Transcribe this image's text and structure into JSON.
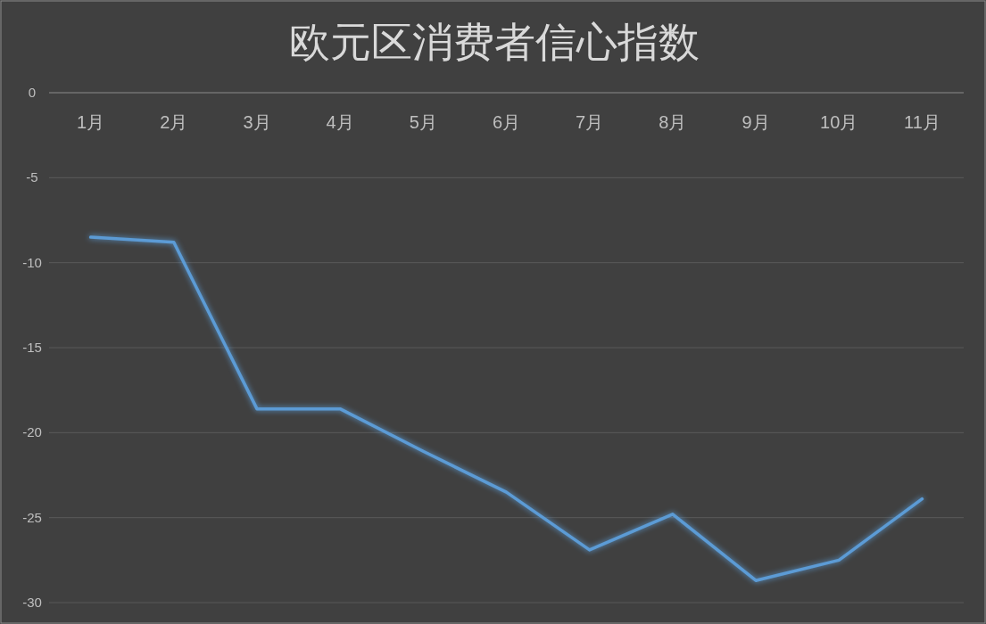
{
  "chart_data": {
    "type": "line",
    "title": "欧元区消费者信心指数",
    "categories": [
      "1月",
      "2月",
      "3月",
      "4月",
      "5月",
      "6月",
      "7月",
      "8月",
      "9月",
      "10月",
      "11月"
    ],
    "series": [
      {
        "color": "#5b9bd5",
        "values": [
          -8.5,
          -8.8,
          -18.6,
          -18.6,
          -21.1,
          -23.5,
          -26.9,
          -24.8,
          -28.7,
          -27.5,
          -23.9
        ]
      }
    ],
    "ylim": [
      -30,
      0
    ],
    "yticks": [
      0,
      -5,
      -10,
      -15,
      -20,
      -25,
      -30
    ],
    "grid": "y"
  }
}
